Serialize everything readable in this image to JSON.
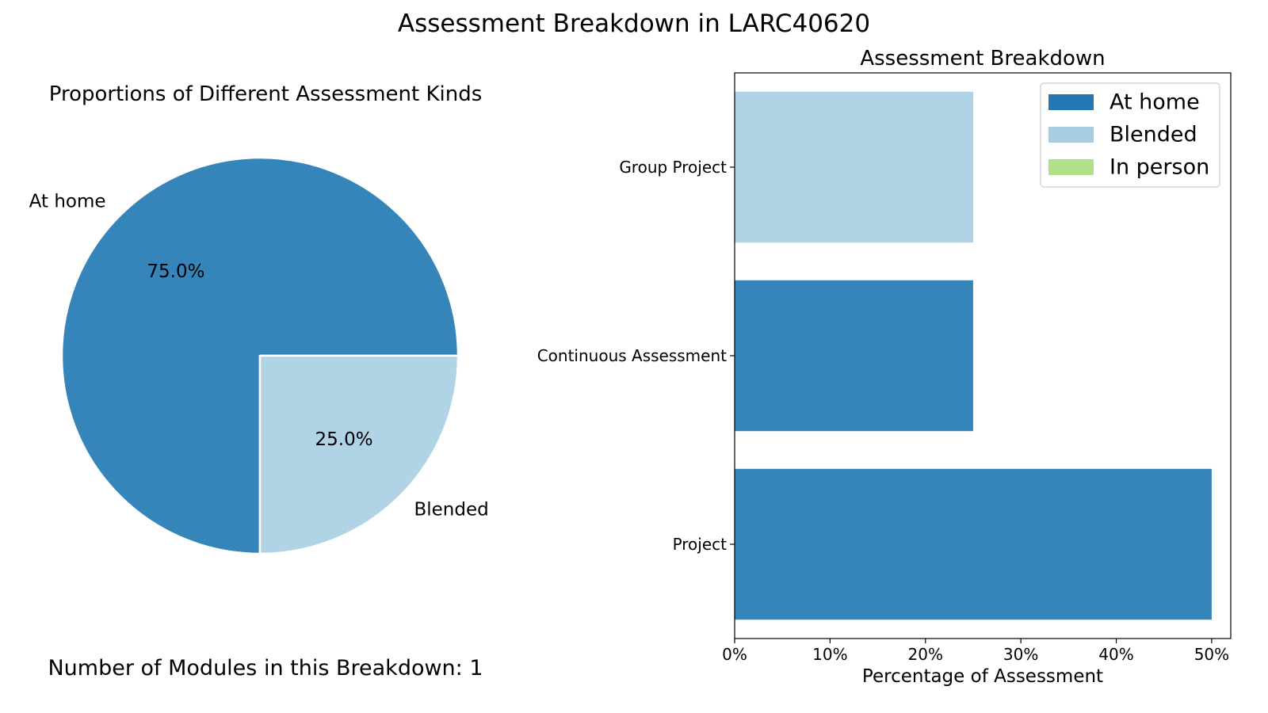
{
  "figure": {
    "title": "Assessment Breakdown in LARC40620",
    "modules_text": "Number of Modules in this Breakdown: 1"
  },
  "chart_data": [
    {
      "type": "pie",
      "title": "Proportions of Different Assessment Kinds",
      "slices": [
        {
          "label": "At home",
          "value": 75.0,
          "pct_label": "75.0%",
          "color": "#3585bb"
        },
        {
          "label": "Blended",
          "value": 25.0,
          "pct_label": "25.0%",
          "color": "#b0d3e5"
        }
      ],
      "start_angle_deg": 0,
      "direction": "counterclockwise"
    },
    {
      "type": "bar",
      "orientation": "horizontal",
      "stacked": true,
      "title": "Assessment Breakdown",
      "xlabel": "Percentage of Assessment",
      "ylabel": "",
      "xlim": [
        0,
        52
      ],
      "xticks": [
        0,
        10,
        20,
        30,
        40,
        50
      ],
      "xtick_labels": [
        "0%",
        "10%",
        "20%",
        "30%",
        "40%",
        "50%"
      ],
      "categories": [
        "Project",
        "Continuous Assessment",
        "Group Project"
      ],
      "series": [
        {
          "name": "At home",
          "color": "#3585bb",
          "values": [
            50,
            25,
            0
          ]
        },
        {
          "name": "Blended",
          "color": "#b0d3e5",
          "values": [
            0,
            0,
            25
          ]
        },
        {
          "name": "In person",
          "color": "#b2df8a",
          "values": [
            0,
            0,
            0
          ]
        }
      ],
      "legend_position": "top-right",
      "legend_colors": [
        "#2678b4",
        "#a6cde2",
        "#b2df8a"
      ],
      "grid": false
    }
  ]
}
